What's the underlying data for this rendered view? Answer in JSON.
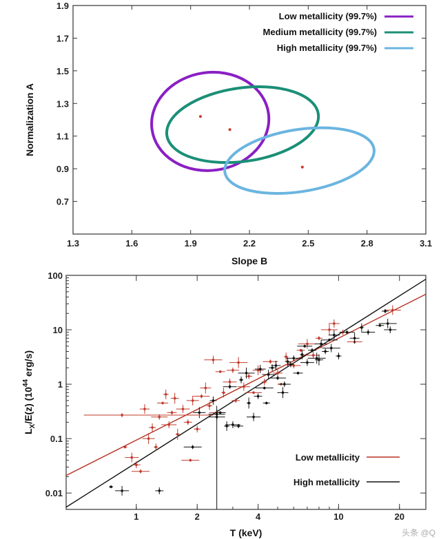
{
  "chart_data": [
    {
      "type": "scatter",
      "xlabel": "Slope B",
      "ylabel": "Normalization A",
      "xlim": [
        1.3,
        3.1
      ],
      "ylim": [
        0.5,
        1.9
      ],
      "xticks": [
        "1.3",
        "1.6",
        "1.9",
        "2.2",
        "2.5",
        "2.8",
        "3.1"
      ],
      "yticks": [
        "0.7",
        "0.9",
        "1.1",
        "1.3",
        "1.5",
        "1.7",
        "1.9"
      ],
      "legend_position": "top-right",
      "series": [
        {
          "name": "Low metallicity (99.7%)",
          "color": "#8a1fc4",
          "best_fit": {
            "x": 1.95,
            "y": 1.22
          },
          "contour": {
            "cx": 2.0,
            "cy": 1.19,
            "rx": 0.3,
            "ry": 0.3,
            "rot": -8
          }
        },
        {
          "name": "Medium metallicity (99.7%)",
          "color": "#1b8f77",
          "best_fit": {
            "x": 2.1,
            "y": 1.14
          },
          "contour": {
            "cx": 2.165,
            "cy": 1.17,
            "rx": 0.39,
            "ry": 0.225,
            "rot": -8
          }
        },
        {
          "name": "High metallicity (99.7%)",
          "color": "#6bb5e0",
          "best_fit": {
            "x": 2.47,
            "y": 0.91
          },
          "contour": {
            "cx": 2.455,
            "cy": 0.95,
            "rx": 0.385,
            "ry": 0.19,
            "rot": -9
          }
        }
      ]
    },
    {
      "type": "scatter",
      "xlabel": "T (keV)",
      "ylabel": "L",
      "ylabel_sub": "X",
      "ylabel_mid": "/E(z) (10",
      "ylabel_sup": "44",
      "ylabel_end": " erg/s)",
      "xscale": "log",
      "yscale": "log",
      "xlim": [
        0.45,
        27
      ],
      "ylim": [
        0.005,
        100
      ],
      "xticks": [
        {
          "v": 1,
          "label": "1"
        },
        {
          "v": 2,
          "label": "2"
        },
        {
          "v": 4,
          "label": "4"
        },
        {
          "v": 10,
          "label": "10"
        },
        {
          "v": 20,
          "label": "20"
        }
      ],
      "yticks": [
        {
          "v": 0.01,
          "label": "0.01"
        },
        {
          "v": 0.1,
          "label": "0.1"
        },
        {
          "v": 1,
          "label": "1"
        },
        {
          "v": 10,
          "label": "10"
        },
        {
          "v": 100,
          "label": "100"
        }
      ],
      "legend_position": "bottom-right",
      "fit_lines": [
        {
          "name": "Low metallicity",
          "color": "#b5301f",
          "x": [
            0.45,
            27
          ],
          "y": [
            0.021,
            45
          ]
        },
        {
          "name": "High metallicity",
          "color": "#111111",
          "x": [
            0.45,
            27
          ],
          "y": [
            0.0055,
            85
          ]
        }
      ],
      "series": [
        {
          "name": "Low metallicity",
          "color": "#c0392b",
          "points": [
            [
              0.88,
              0.07
            ],
            [
              0.95,
              0.045
            ],
            [
              1.0,
              0.033
            ],
            [
              1.05,
              0.025
            ],
            [
              1.15,
              0.1
            ],
            [
              1.2,
              0.16
            ],
            [
              1.3,
              0.25
            ],
            [
              1.35,
              0.45
            ],
            [
              1.4,
              0.65
            ],
            [
              1.45,
              0.18
            ],
            [
              1.5,
              0.3
            ],
            [
              1.6,
              0.12
            ],
            [
              1.7,
              0.35
            ],
            [
              1.8,
              0.2
            ],
            [
              1.85,
              0.04
            ],
            [
              1.9,
              0.5
            ],
            [
              2.0,
              0.15
            ],
            [
              2.1,
              0.6
            ],
            [
              2.2,
              0.85
            ],
            [
              2.3,
              0.4
            ],
            [
              2.5,
              0.3
            ],
            [
              2.6,
              1.7
            ],
            [
              2.7,
              0.7
            ],
            [
              2.9,
              1.1
            ],
            [
              3.1,
              0.5
            ],
            [
              3.2,
              2.5
            ],
            [
              3.4,
              0.9
            ],
            [
              3.6,
              1.4
            ],
            [
              3.8,
              0.7
            ],
            [
              4.0,
              1.8
            ],
            [
              4.3,
              1.1
            ],
            [
              4.6,
              2.6
            ],
            [
              5.0,
              1.6
            ],
            [
              5.5,
              3.2
            ],
            [
              6.0,
              2.2
            ],
            [
              6.5,
              4.2
            ],
            [
              7.0,
              5.5
            ],
            [
              7.5,
              3.4
            ],
            [
              8.0,
              7.0
            ],
            [
              9.0,
              10.0
            ],
            [
              9.5,
              13.0
            ],
            [
              10.5,
              9.0
            ],
            [
              12.0,
              6.0
            ],
            [
              1.1,
              0.35
            ],
            [
              1.25,
              0.07
            ],
            [
              0.85,
              0.27
            ],
            [
              1.55,
              0.55
            ],
            [
              2.4,
              2.8
            ],
            [
              3.0,
              1.8
            ],
            [
              5.2,
              1.0
            ],
            [
              18.5,
              23.0
            ]
          ]
        },
        {
          "name": "High metallicity",
          "color": "#111111",
          "points": [
            [
              0.75,
              0.013
            ],
            [
              0.85,
              0.011
            ],
            [
              1.3,
              0.011
            ],
            [
              1.9,
              0.07
            ],
            [
              2.05,
              0.3
            ],
            [
              2.4,
              0.5
            ],
            [
              2.5,
              0.25
            ],
            [
              2.6,
              0.3
            ],
            [
              2.8,
              0.17
            ],
            [
              3.0,
              0.18
            ],
            [
              3.2,
              0.17
            ],
            [
              3.6,
              0.45
            ],
            [
              3.8,
              0.25
            ],
            [
              4.0,
              0.6
            ],
            [
              4.3,
              0.85
            ],
            [
              4.5,
              1.5
            ],
            [
              4.7,
              2.0
            ],
            [
              5.0,
              1.3
            ],
            [
              5.3,
              0.7
            ],
            [
              5.6,
              2.6
            ],
            [
              6.0,
              3.0
            ],
            [
              6.3,
              1.6
            ],
            [
              6.6,
              3.5
            ],
            [
              7.0,
              2.5
            ],
            [
              7.4,
              4.2
            ],
            [
              7.8,
              3.0
            ],
            [
              8.2,
              5.5
            ],
            [
              8.6,
              4.0
            ],
            [
              9.0,
              6.5
            ],
            [
              9.5,
              8.0
            ],
            [
              10.0,
              3.3
            ],
            [
              11.0,
              9.0
            ],
            [
              12.0,
              7.0
            ],
            [
              13.0,
              11.0
            ],
            [
              14.0,
              9.0
            ],
            [
              16.0,
              12.0
            ],
            [
              17.5,
              13.0
            ],
            [
              18.0,
              10.0
            ],
            [
              17.0,
              22.0
            ],
            [
              3.5,
              1.6
            ],
            [
              4.1,
              1.9
            ],
            [
              5.8,
              2.3
            ],
            [
              6.8,
              5.0
            ],
            [
              4.9,
              2.2
            ],
            [
              3.3,
              1.2
            ],
            [
              2.9,
              0.9
            ],
            [
              8.0,
              2.8
            ],
            [
              9.2,
              4.6
            ],
            [
              5.4,
              1.0
            ],
            [
              4.4,
              0.45
            ],
            [
              2.5,
              0.28
            ]
          ]
        }
      ]
    }
  ],
  "watermark": "头条 @Q"
}
